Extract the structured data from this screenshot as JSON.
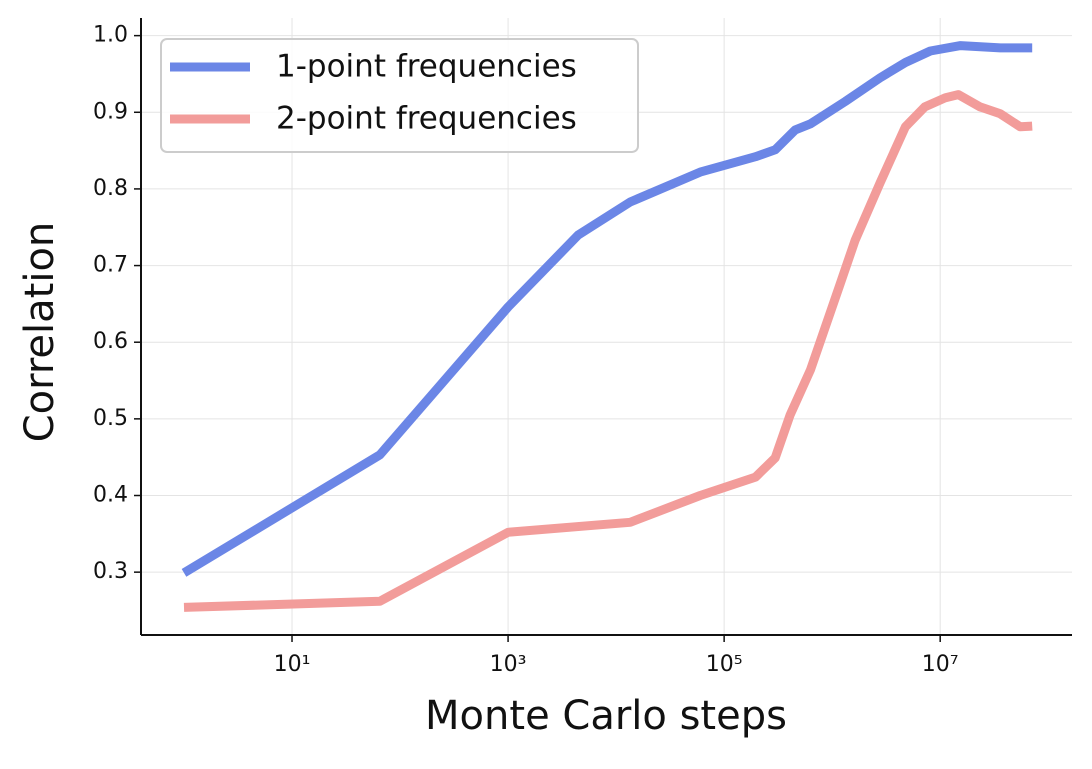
{
  "chart_data": {
    "type": "line",
    "x_label": "Monte Carlo steps",
    "y_label": "Correlation",
    "x_scale": "log",
    "grid": true,
    "legend_position": "upper-left",
    "xlim": [
      0.4,
      166000000
    ],
    "ylim": [
      0.218,
      1.023
    ],
    "xticks": [
      {
        "value": 10,
        "label": "10¹"
      },
      {
        "value": 1000,
        "label": "10³"
      },
      {
        "value": 100000,
        "label": "10⁵"
      },
      {
        "value": 10000000,
        "label": "10⁷"
      }
    ],
    "yticks": [
      0.3,
      0.4,
      0.5,
      0.6,
      0.7,
      0.8,
      0.9,
      {
        "value": 1.0,
        "label": "1.0"
      }
    ],
    "series": [
      {
        "name": "1-point frequencies",
        "color": "#6b86e6",
        "x": [
          1,
          65,
          1000,
          4470,
          13500,
          60000,
          195000,
          297000,
          455000,
          630000,
          1320000,
          2780000,
          4760000,
          8100000,
          15400000,
          36000000,
          71000000
        ],
        "values": [
          0.299,
          0.453,
          0.646,
          0.74,
          0.783,
          0.822,
          0.842,
          0.851,
          0.877,
          0.885,
          0.914,
          0.945,
          0.965,
          0.98,
          0.987,
          0.984,
          0.984
        ]
      },
      {
        "name": "2-point frequencies",
        "color": "#f29c9a",
        "x": [
          1,
          65,
          1000,
          13500,
          60000,
          195000,
          297000,
          408000,
          630000,
          1180000,
          1630000,
          2780000,
          4760000,
          7200000,
          11200000,
          14700000,
          23400000,
          36000000,
          55000000,
          71000000
        ],
        "values": [
          0.254,
          0.262,
          0.352,
          0.365,
          0.4,
          0.424,
          0.449,
          0.505,
          0.564,
          0.675,
          0.733,
          0.808,
          0.881,
          0.907,
          0.919,
          0.923,
          0.907,
          0.898,
          0.881,
          0.882
        ]
      }
    ]
  }
}
